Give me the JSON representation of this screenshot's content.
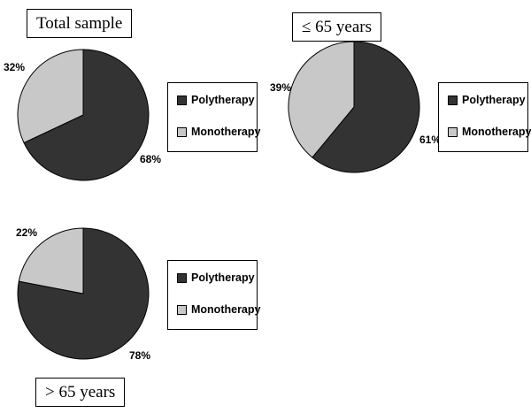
{
  "colors": {
    "polytherapy": "#333333",
    "monotherapy": "#c8c8c8"
  },
  "legend": [
    "Polytherapy",
    "Monotherapy"
  ],
  "chart_data": [
    {
      "type": "pie",
      "title": "Total sample",
      "slices": [
        {
          "label": "Polytherapy",
          "value": 68,
          "text": "68%"
        },
        {
          "label": "Monotherapy",
          "value": 32,
          "text": "32%"
        }
      ]
    },
    {
      "type": "pie",
      "title": "≤ 65 years",
      "slices": [
        {
          "label": "Polytherapy",
          "value": 61,
          "text": "61%"
        },
        {
          "label": "Monotherapy",
          "value": 39,
          "text": "39%"
        }
      ]
    },
    {
      "type": "pie",
      "title": "> 65 years",
      "slices": [
        {
          "label": "Polytherapy",
          "value": 78,
          "text": "78%"
        },
        {
          "label": "Monotherapy",
          "value": 22,
          "text": "22%"
        }
      ]
    }
  ]
}
